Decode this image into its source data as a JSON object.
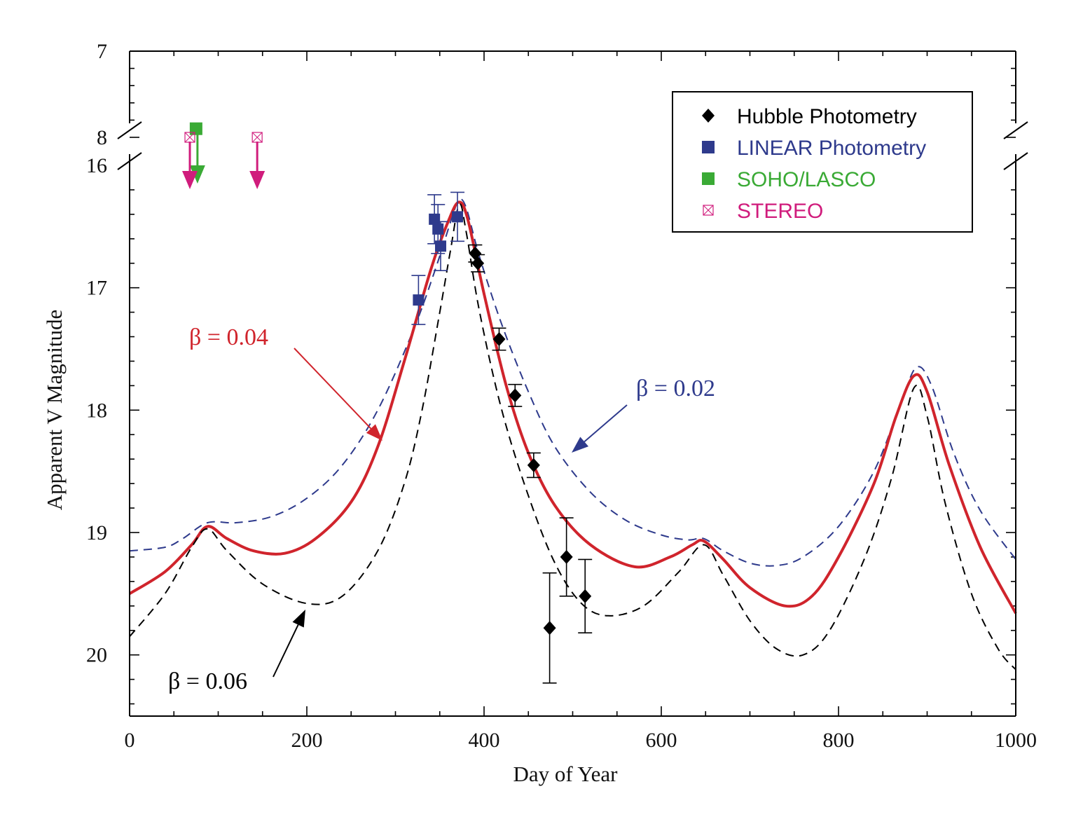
{
  "chart_data": {
    "type": "scatter",
    "title": "",
    "xlabel": "Day of Year",
    "ylabel": "Apparent V Magnitude",
    "xlim": [
      0,
      1000
    ],
    "ylim_main": [
      16,
      20.5
    ],
    "ylim_upper": [
      7,
      8
    ],
    "y_inverted": true,
    "x_ticks": [
      0,
      200,
      400,
      600,
      800,
      1000
    ],
    "x_tick_labels": [
      "0",
      "200",
      "400",
      "600",
      "800",
      "1000"
    ],
    "y_ticks_main": [
      16,
      17,
      18,
      19,
      20
    ],
    "y_tick_labels_main": [
      "16",
      "17",
      "18",
      "19",
      "20"
    ],
    "y_ticks_upper": [
      7,
      8
    ],
    "y_tick_labels_upper": [
      "7",
      "8"
    ],
    "legend": {
      "position": "top-right",
      "entries": [
        {
          "label": "Hubble Photometry",
          "marker": "diamond",
          "color": "#000000"
        },
        {
          "label": "LINEAR Photometry",
          "marker": "square",
          "color": "#2e3a8c"
        },
        {
          "label": "SOHO/LASCO",
          "marker": "square",
          "color": "#3aaa35"
        },
        {
          "label": "STEREO",
          "marker": "boxed-x",
          "color": "#d01c7c"
        }
      ]
    },
    "series": [
      {
        "name": "Hubble Photometry",
        "color": "#000000",
        "points": [
          {
            "x": 390,
            "y": 16.72,
            "err": 0.07
          },
          {
            "x": 393,
            "y": 16.8,
            "err": 0.07
          },
          {
            "x": 417,
            "y": 17.42,
            "err": 0.09
          },
          {
            "x": 435,
            "y": 17.88,
            "err": 0.09
          },
          {
            "x": 456,
            "y": 18.45,
            "err": 0.1
          },
          {
            "x": 474,
            "y": 19.78,
            "err": 0.45
          },
          {
            "x": 493,
            "y": 19.2,
            "err": 0.32
          },
          {
            "x": 514,
            "y": 19.52,
            "err": 0.3
          }
        ]
      },
      {
        "name": "LINEAR Photometry",
        "color": "#2e3a8c",
        "points": [
          {
            "x": 326,
            "y": 17.1,
            "err": 0.2
          },
          {
            "x": 344,
            "y": 16.44,
            "err": 0.2
          },
          {
            "x": 348,
            "y": 16.52,
            "err": 0.2
          },
          {
            "x": 351,
            "y": 16.66,
            "err": 0.2
          },
          {
            "x": 370,
            "y": 16.42,
            "err": 0.2
          }
        ]
      },
      {
        "name": "SOHO/LASCO",
        "color": "#3aaa35",
        "upper_limits": [
          {
            "x": 75,
            "y": 7.9
          }
        ]
      },
      {
        "name": "STEREO",
        "color": "#d01c7c",
        "upper_limits": [
          {
            "x": 68,
            "y": 8.0
          },
          {
            "x": 144,
            "y": 8.0
          }
        ]
      }
    ],
    "model_curves": [
      {
        "name": "β = 0.02",
        "color": "#2e3a8c",
        "style": "dashed",
        "points": [
          [
            0,
            19.15
          ],
          [
            40,
            19.12
          ],
          [
            60,
            19.05
          ],
          [
            88,
            18.92
          ],
          [
            120,
            18.92
          ],
          [
            160,
            18.87
          ],
          [
            200,
            18.72
          ],
          [
            240,
            18.45
          ],
          [
            280,
            18.0
          ],
          [
            320,
            17.35
          ],
          [
            345,
            16.85
          ],
          [
            365,
            16.4
          ],
          [
            372,
            16.28
          ],
          [
            380,
            16.35
          ],
          [
            395,
            16.75
          ],
          [
            420,
            17.3
          ],
          [
            450,
            17.85
          ],
          [
            480,
            18.3
          ],
          [
            520,
            18.67
          ],
          [
            560,
            18.9
          ],
          [
            600,
            19.02
          ],
          [
            630,
            19.06
          ],
          [
            648,
            19.05
          ],
          [
            670,
            19.15
          ],
          [
            700,
            19.25
          ],
          [
            730,
            19.27
          ],
          [
            760,
            19.2
          ],
          [
            800,
            18.95
          ],
          [
            840,
            18.5
          ],
          [
            870,
            17.95
          ],
          [
            888,
            17.65
          ],
          [
            905,
            17.8
          ],
          [
            930,
            18.35
          ],
          [
            960,
            18.82
          ],
          [
            1000,
            19.22
          ]
        ]
      },
      {
        "name": "β = 0.04",
        "color": "#d0242c",
        "style": "solid",
        "points": [
          [
            0,
            19.5
          ],
          [
            40,
            19.32
          ],
          [
            70,
            19.1
          ],
          [
            88,
            18.95
          ],
          [
            110,
            19.05
          ],
          [
            140,
            19.15
          ],
          [
            175,
            19.17
          ],
          [
            210,
            19.05
          ],
          [
            250,
            18.75
          ],
          [
            280,
            18.3
          ],
          [
            310,
            17.6
          ],
          [
            340,
            16.85
          ],
          [
            360,
            16.45
          ],
          [
            372,
            16.3
          ],
          [
            382,
            16.45
          ],
          [
            400,
            17.05
          ],
          [
            425,
            17.8
          ],
          [
            450,
            18.35
          ],
          [
            480,
            18.78
          ],
          [
            520,
            19.1
          ],
          [
            570,
            19.28
          ],
          [
            610,
            19.2
          ],
          [
            635,
            19.1
          ],
          [
            648,
            19.07
          ],
          [
            670,
            19.22
          ],
          [
            700,
            19.45
          ],
          [
            740,
            19.6
          ],
          [
            770,
            19.52
          ],
          [
            800,
            19.2
          ],
          [
            840,
            18.6
          ],
          [
            865,
            18.05
          ],
          [
            885,
            17.72
          ],
          [
            900,
            17.85
          ],
          [
            925,
            18.45
          ],
          [
            960,
            19.12
          ],
          [
            1000,
            19.66
          ]
        ]
      },
      {
        "name": "β = 0.06",
        "color": "#000000",
        "style": "dashed",
        "points": [
          [
            0,
            19.85
          ],
          [
            40,
            19.5
          ],
          [
            70,
            19.12
          ],
          [
            88,
            18.97
          ],
          [
            110,
            19.15
          ],
          [
            150,
            19.42
          ],
          [
            200,
            19.58
          ],
          [
            240,
            19.52
          ],
          [
            280,
            19.15
          ],
          [
            310,
            18.6
          ],
          [
            330,
            18.0
          ],
          [
            350,
            17.2
          ],
          [
            362,
            16.7
          ],
          [
            372,
            16.32
          ],
          [
            380,
            16.55
          ],
          [
            395,
            17.2
          ],
          [
            420,
            18.0
          ],
          [
            450,
            18.7
          ],
          [
            480,
            19.25
          ],
          [
            510,
            19.58
          ],
          [
            540,
            19.68
          ],
          [
            580,
            19.6
          ],
          [
            620,
            19.32
          ],
          [
            648,
            19.1
          ],
          [
            670,
            19.35
          ],
          [
            700,
            19.72
          ],
          [
            730,
            19.95
          ],
          [
            760,
            20.0
          ],
          [
            790,
            19.8
          ],
          [
            830,
            19.2
          ],
          [
            860,
            18.55
          ],
          [
            885,
            17.82
          ],
          [
            900,
            18.05
          ],
          [
            920,
            18.75
          ],
          [
            950,
            19.5
          ],
          [
            980,
            19.95
          ],
          [
            1000,
            20.12
          ]
        ]
      }
    ],
    "annotations": [
      {
        "text": "β = 0.04",
        "color": "#d0242c"
      },
      {
        "text": "β = 0.02",
        "color": "#2e3a8c"
      },
      {
        "text": "β = 0.06",
        "color": "#000000"
      }
    ]
  }
}
